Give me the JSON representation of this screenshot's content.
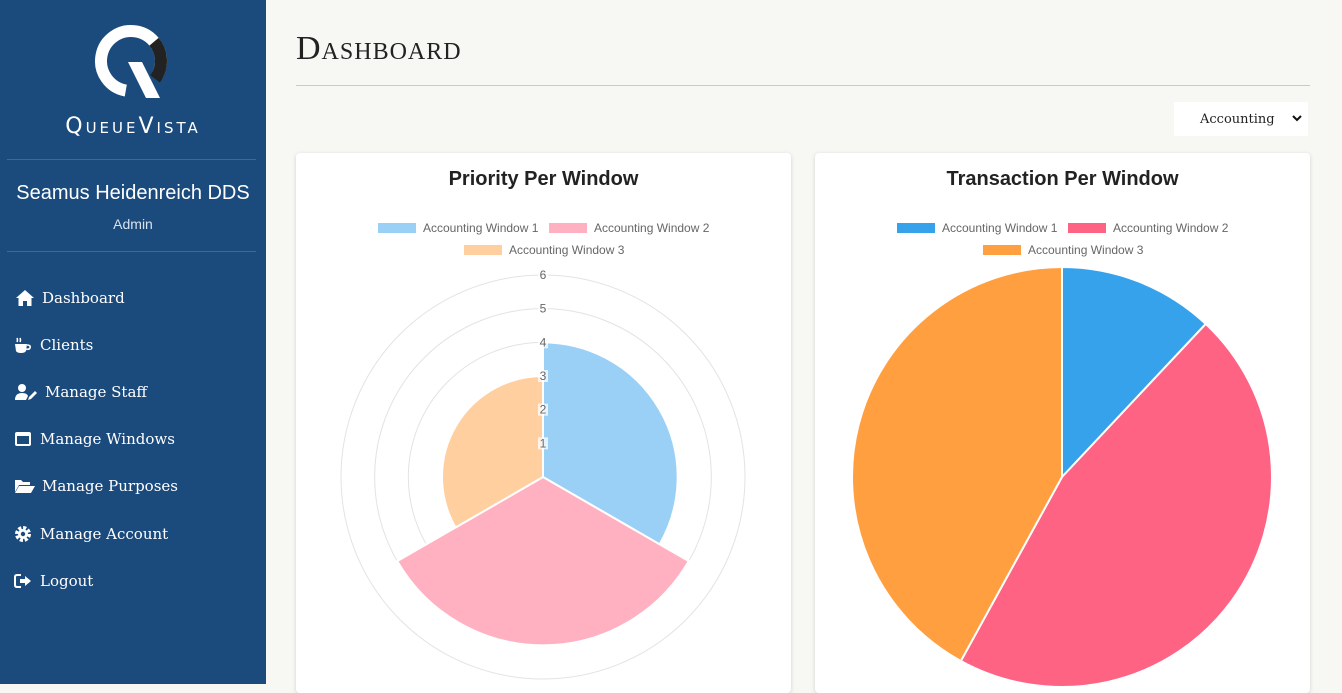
{
  "app": {
    "brand": "QueueVista"
  },
  "user": {
    "name": "Seamus Heidenreich DDS",
    "role": "Admin"
  },
  "nav": [
    {
      "label": "Dashboard",
      "icon": "home-icon"
    },
    {
      "label": "Clients",
      "icon": "coffee-icon"
    },
    {
      "label": "Manage Staff",
      "icon": "user-edit-icon"
    },
    {
      "label": "Manage Windows",
      "icon": "window-icon"
    },
    {
      "label": "Manage Purposes",
      "icon": "folder-open-icon"
    },
    {
      "label": "Manage Account",
      "icon": "gear-icon"
    },
    {
      "label": "Logout",
      "icon": "logout-icon"
    }
  ],
  "page": {
    "title": "Dashboard"
  },
  "filter": {
    "selected": "Accounting"
  },
  "colors": {
    "sidebar": "#1b4a7c",
    "w1": "#36a2eb",
    "w2": "#ff6384",
    "w3": "#ff9f40",
    "w1_light": "#9ad0f5",
    "w2_light": "#ffb1c1",
    "w3_light": "#ffcf9f"
  },
  "chart_data": [
    {
      "type": "polarArea",
      "title": "Priority Per Window",
      "categories": [
        "Accounting Window 1",
        "Accounting Window 2",
        "Accounting Window 3"
      ],
      "values": [
        4,
        5,
        3
      ],
      "rlim": [
        0,
        6
      ],
      "ticks": [
        "1",
        "2",
        "3",
        "4",
        "5",
        "6"
      ],
      "legend": "top"
    },
    {
      "type": "pie",
      "title": "Transaction Per Window",
      "categories": [
        "Accounting Window 1",
        "Accounting Window 2",
        "Accounting Window 3"
      ],
      "values": [
        12,
        46,
        42
      ],
      "legend": "top"
    }
  ]
}
